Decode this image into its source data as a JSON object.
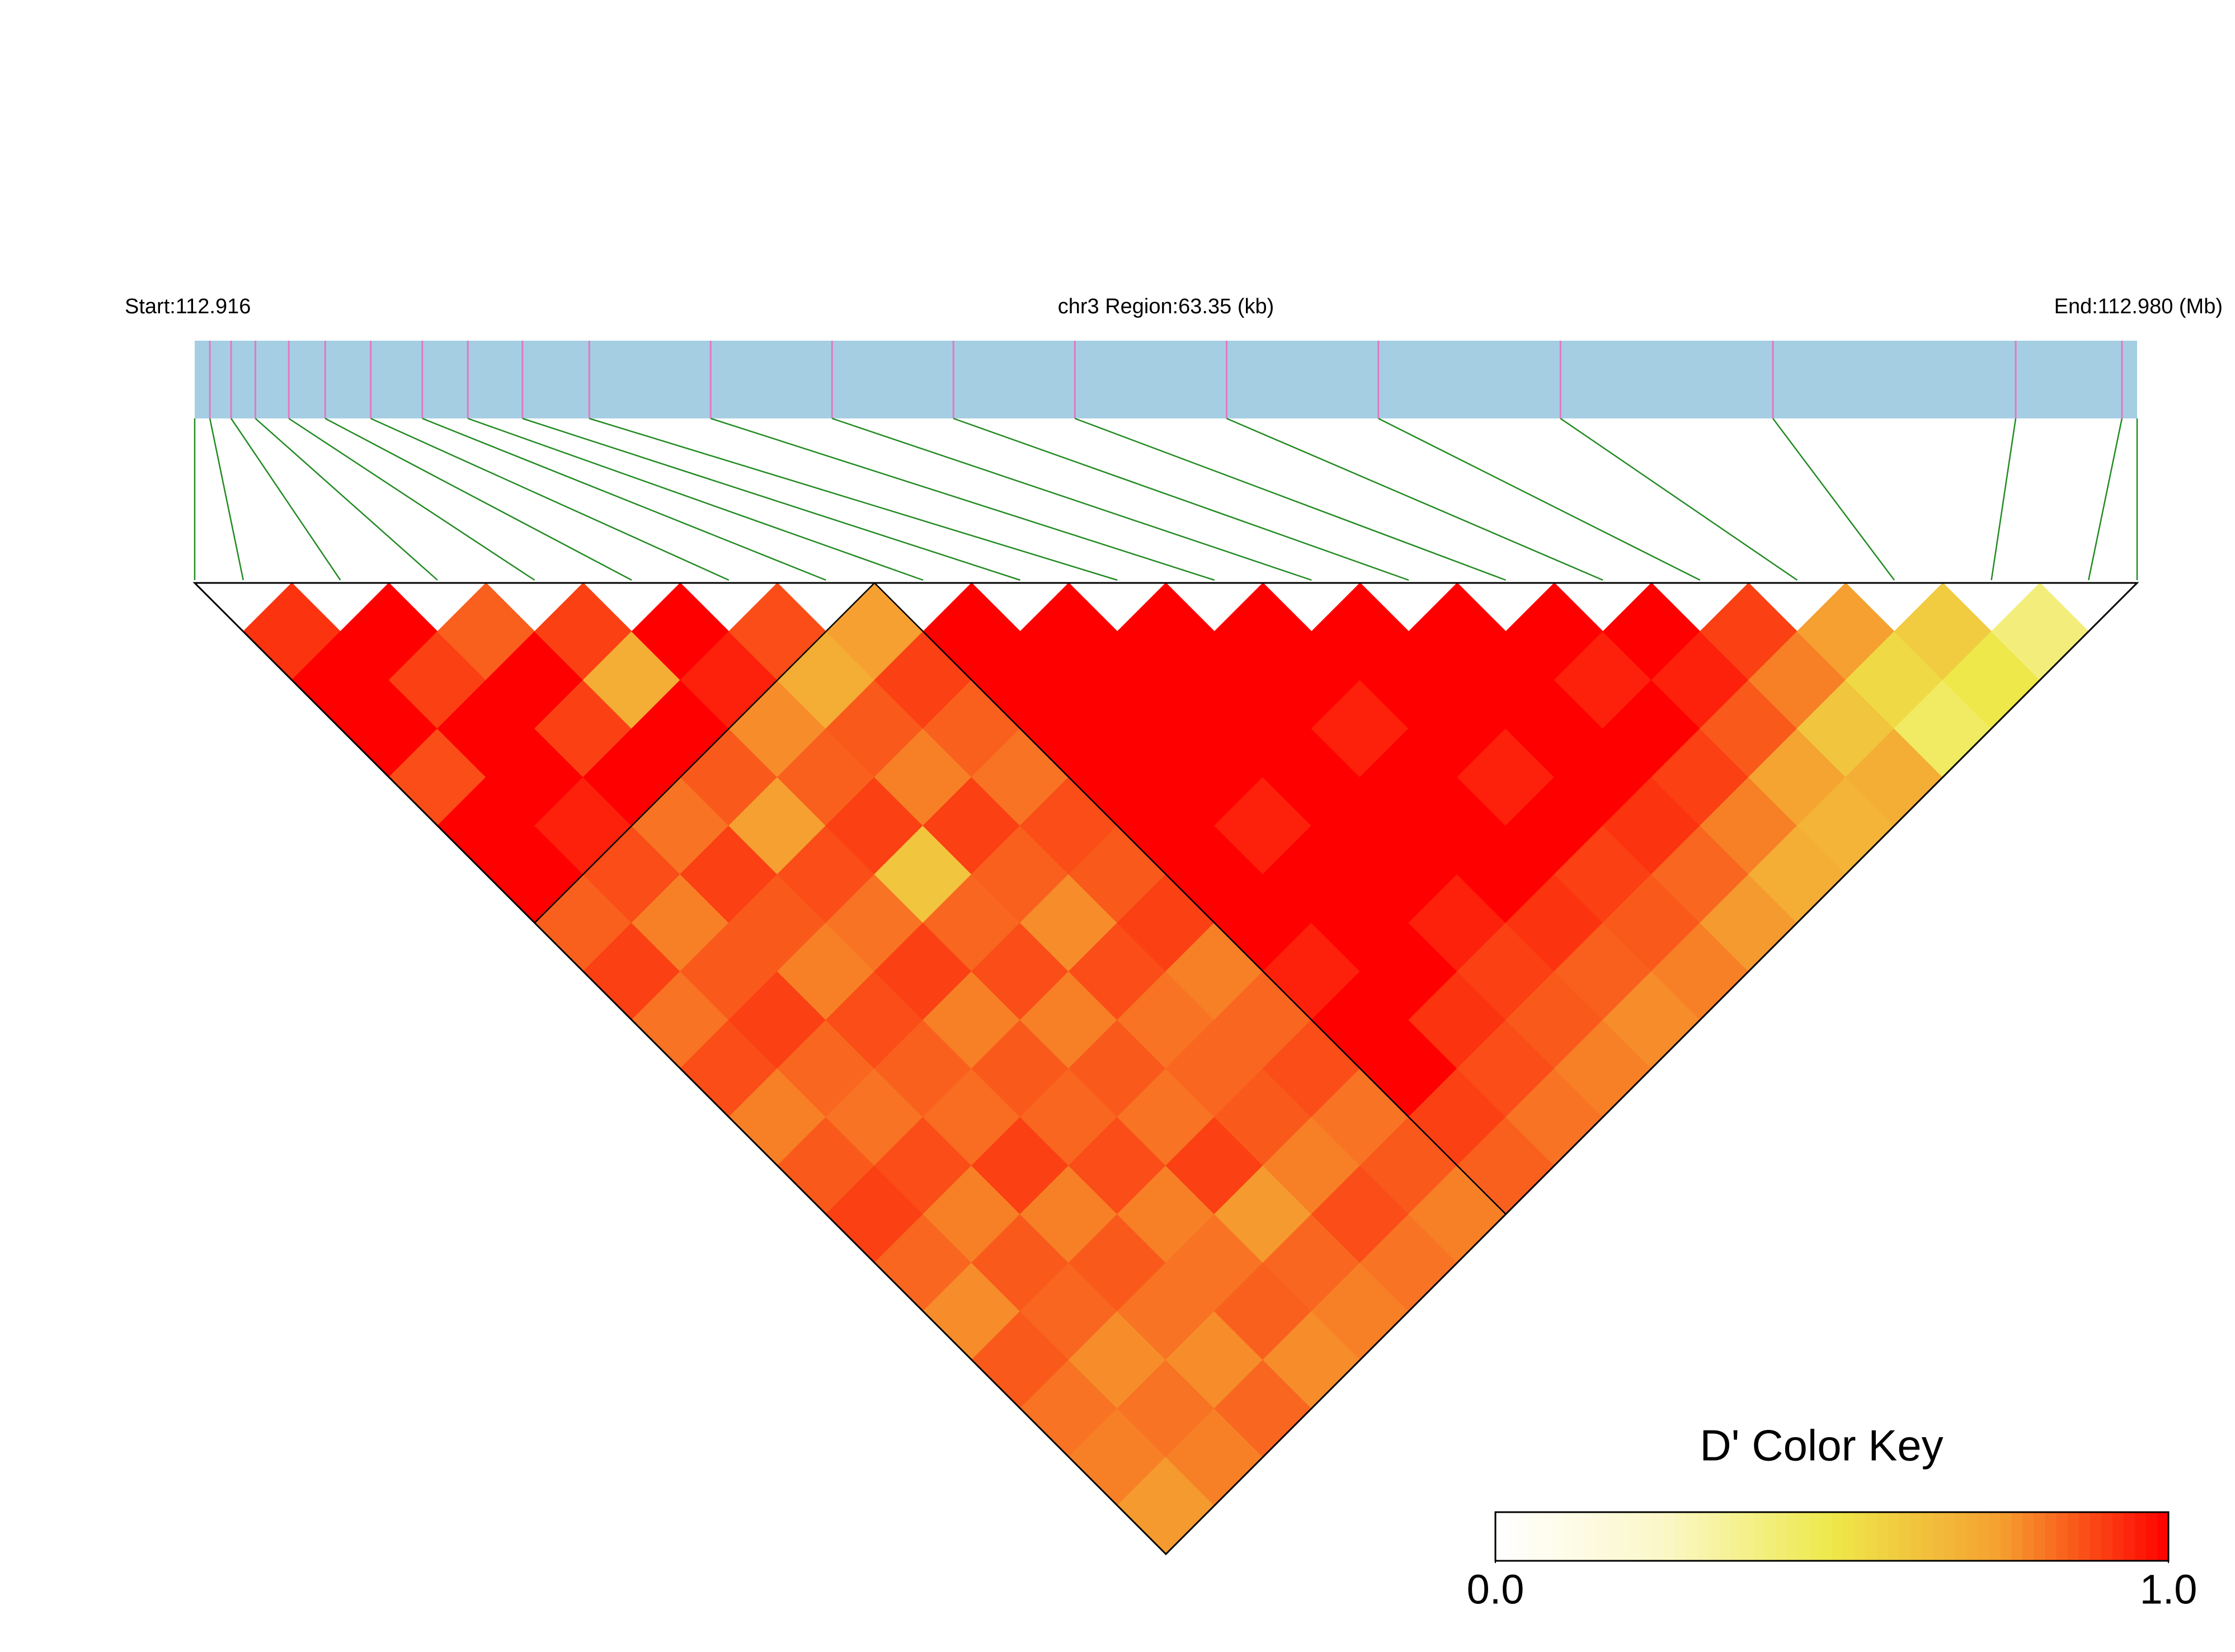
{
  "chart_data": {
    "type": "ldheatmap",
    "start_label": "Start:112.916",
    "region_label": "chr3 Region:63.35 (kb)",
    "end_label": "End:112.980 (Mb)",
    "xlim": [
      112.916,
      112.98
    ],
    "x": [
      112.9165,
      112.9172,
      112.918,
      112.9191,
      112.9203,
      112.9218,
      112.9235,
      112.925,
      112.9268,
      112.929,
      112.933,
      112.937,
      112.941,
      112.945,
      112.95,
      112.955,
      112.961,
      112.968,
      112.976,
      112.9795
    ],
    "bar_color": "#a6cee3",
    "tick_color": "#e377c2",
    "link_color": "#228b22",
    "ld": {
      "rows": [
        [
          0.92,
          1,
          1,
          0.88,
          1,
          1,
          0.85,
          0.9,
          0.82,
          0.88,
          0.8,
          0.86,
          0.9,
          0.84,
          0.78,
          0.86,
          0.82,
          0.8,
          0.76
        ],
        [
          1,
          0.9,
          1,
          1,
          0.95,
          0.88,
          0.8,
          0.86,
          0.9,
          0.84,
          0.82,
          0.88,
          0.8,
          0.86,
          0.84,
          0.78,
          0.82,
          0.8
        ],
        [
          0.85,
          1,
          0.9,
          1,
          0.82,
          0.9,
          0.86,
          0.8,
          0.88,
          0.85,
          0.83,
          0.9,
          0.8,
          0.86,
          0.82,
          0.78,
          0.84
        ],
        [
          0.9,
          0.7,
          1,
          0.86,
          0.75,
          0.88,
          0.82,
          0.9,
          0.8,
          0.86,
          0.84,
          0.88,
          0.8,
          0.82,
          0.85,
          0.78
        ],
        [
          1,
          0.95,
          0.78,
          0.85,
          0.9,
          0.62,
          0.84,
          0.88,
          0.8,
          0.86,
          0.82,
          0.9,
          0.76,
          0.84,
          0.8
        ],
        [
          0.88,
          0.7,
          0.86,
          0.8,
          0.9,
          0.85,
          0.78,
          0.88,
          0.82,
          0.84,
          0.86,
          0.8,
          0.88,
          0.82
        ],
        [
          0.75,
          0.9,
          0.85,
          0.82,
          0.88,
          0.86,
          0.9,
          0.8,
          0.84,
          0.88,
          0.82,
          0.86,
          0.8
        ],
        [
          1,
          1,
          1,
          1,
          1,
          1,
          1,
          0.95,
          1,
          1,
          0.9,
          0.85
        ],
        [
          1,
          1,
          1,
          1,
          0.95,
          1,
          1,
          1,
          0.92,
          0.88,
          0.82
        ],
        [
          1,
          1,
          1,
          1,
          1,
          1,
          0.95,
          0.9,
          0.86,
          0.8
        ],
        [
          1,
          1,
          0.95,
          1,
          1,
          1,
          0.92,
          0.85,
          0.78
        ],
        [
          1,
          1,
          1,
          0.95,
          1,
          0.9,
          0.86,
          0.8
        ],
        [
          1,
          1,
          1,
          1,
          0.92,
          0.84,
          0.76
        ],
        [
          1,
          0.95,
          1,
          0.9,
          0.8,
          0.7
        ],
        [
          1,
          0.95,
          0.86,
          0.74,
          0.68
        ],
        [
          0.9,
          0.8,
          0.62,
          0.7
        ],
        [
          0.75,
          0.55,
          0.45
        ],
        [
          0.6,
          0.5
        ],
        [
          0.4
        ]
      ]
    },
    "blocks": [
      [
        0,
        6
      ],
      [
        7,
        19
      ]
    ],
    "color_key": {
      "title": "D' Color Key",
      "lim": [
        0,
        1
      ],
      "ticks": [
        {
          "value": 0,
          "label": "0.0"
        },
        {
          "value": 1,
          "label": "1.0"
        }
      ],
      "colors": [
        "#ffffff",
        "#fbf7c8",
        "#eee84a",
        "#f5a030",
        "#ff0000"
      ]
    }
  }
}
